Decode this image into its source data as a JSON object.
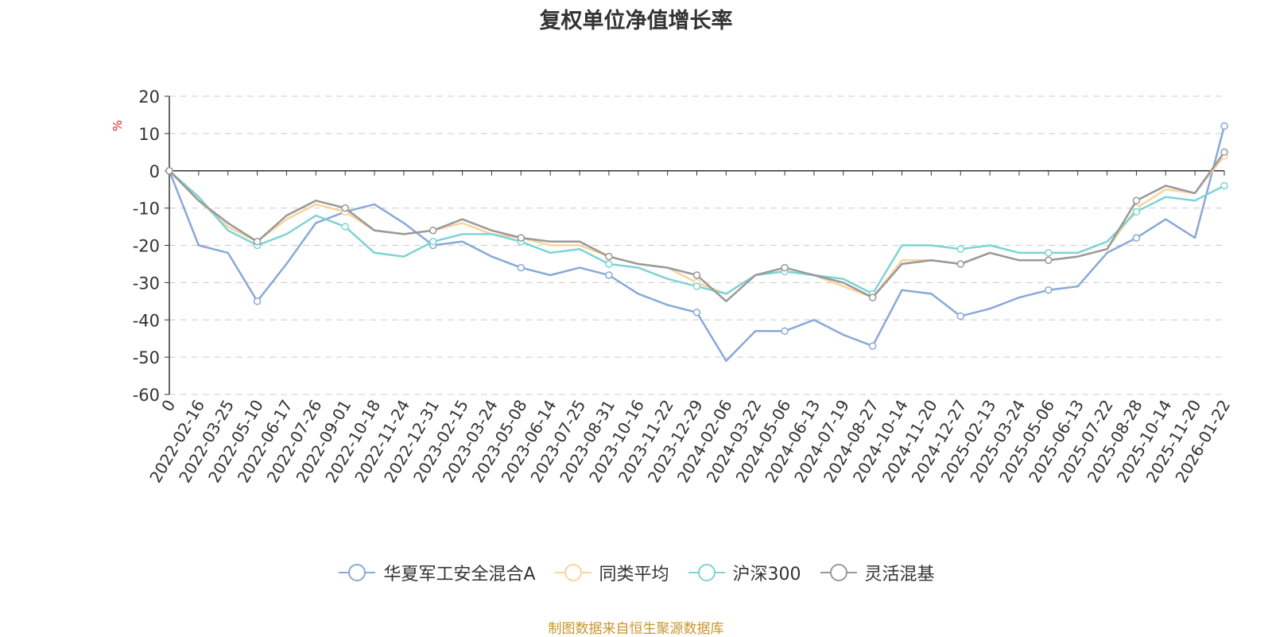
{
  "chart_data": {
    "type": "line",
    "title": "复权单位净值增长率",
    "xlabel": "",
    "ylabel": "%",
    "ylim": [
      -60,
      20
    ],
    "yticks": [
      20,
      10,
      0,
      -10,
      -20,
      -30,
      -40,
      -50,
      -60
    ],
    "grid": true,
    "legend_position": "bottom",
    "x": [
      "0",
      "2022-02-16",
      "2022-03-25",
      "2022-05-10",
      "2022-06-17",
      "2022-07-26",
      "2022-09-01",
      "2022-10-18",
      "2022-11-24",
      "2022-12-31",
      "2023-02-15",
      "2023-03-24",
      "2023-05-08",
      "2023-06-14",
      "2023-07-25",
      "2023-08-31",
      "2023-10-16",
      "2023-11-22",
      "2023-12-29",
      "2024-02-06",
      "2024-03-22",
      "2024-05-06",
      "2024-06-13",
      "2024-07-19",
      "2024-08-27",
      "2024-10-14",
      "2024-11-20",
      "2024-12-27",
      "2025-02-13",
      "2025-03-24",
      "2025-05-06",
      "2025-06-13",
      "2025-07-22",
      "2025-08-28",
      "2025-10-14",
      "2025-11-20",
      "2026-01-22"
    ],
    "series": [
      {
        "name": "华夏军工安全混合A",
        "color": "#8aa8d8",
        "values": [
          0,
          -20,
          -22,
          -35,
          -25,
          -14,
          -11,
          -9,
          -14,
          -20,
          -19,
          -23,
          -26,
          -28,
          -26,
          -28,
          -33,
          -36,
          -38,
          -51,
          -43,
          -43,
          -40,
          -44,
          -47,
          -32,
          -33,
          -39,
          -37,
          -34,
          -32,
          -31,
          -22,
          -18,
          -13,
          -18,
          12
        ]
      },
      {
        "name": "同类平均",
        "color": "#f8d49e",
        "values": [
          0,
          -8,
          -15,
          -19,
          -13,
          -9,
          -11,
          -16,
          -17,
          -16,
          -14,
          -17,
          -18,
          -20,
          -20,
          -23,
          -25,
          -26,
          -30,
          -33,
          -28,
          -27,
          -28,
          -31,
          -34,
          -24,
          -24,
          -25,
          -22,
          -24,
          -24,
          -23,
          -21,
          -10,
          -5,
          -6,
          4
        ]
      },
      {
        "name": "沪深300",
        "color": "#7dd4d4",
        "values": [
          0,
          -7,
          -16,
          -20,
          -17,
          -12,
          -15,
          -22,
          -23,
          -19,
          -17,
          -17,
          -19,
          -22,
          -21,
          -25,
          -26,
          -29,
          -31,
          -33,
          -28,
          -27,
          -28,
          -29,
          -33,
          -20,
          -20,
          -21,
          -20,
          -22,
          -22,
          -22,
          -19,
          -11,
          -7,
          -8,
          -4
        ]
      },
      {
        "name": "灵活混基",
        "color": "#999999",
        "values": [
          0,
          -8,
          -14,
          -19,
          -12,
          -8,
          -10,
          -16,
          -17,
          -16,
          -13,
          -16,
          -18,
          -19,
          -19,
          -23,
          -25,
          -26,
          -28,
          -35,
          -28,
          -26,
          -28,
          -30,
          -34,
          -25,
          -24,
          -25,
          -22,
          -24,
          -24,
          -23,
          -21,
          -8,
          -4,
          -6,
          5
        ]
      }
    ]
  },
  "source_note": "制图数据来自恒生聚源数据库"
}
